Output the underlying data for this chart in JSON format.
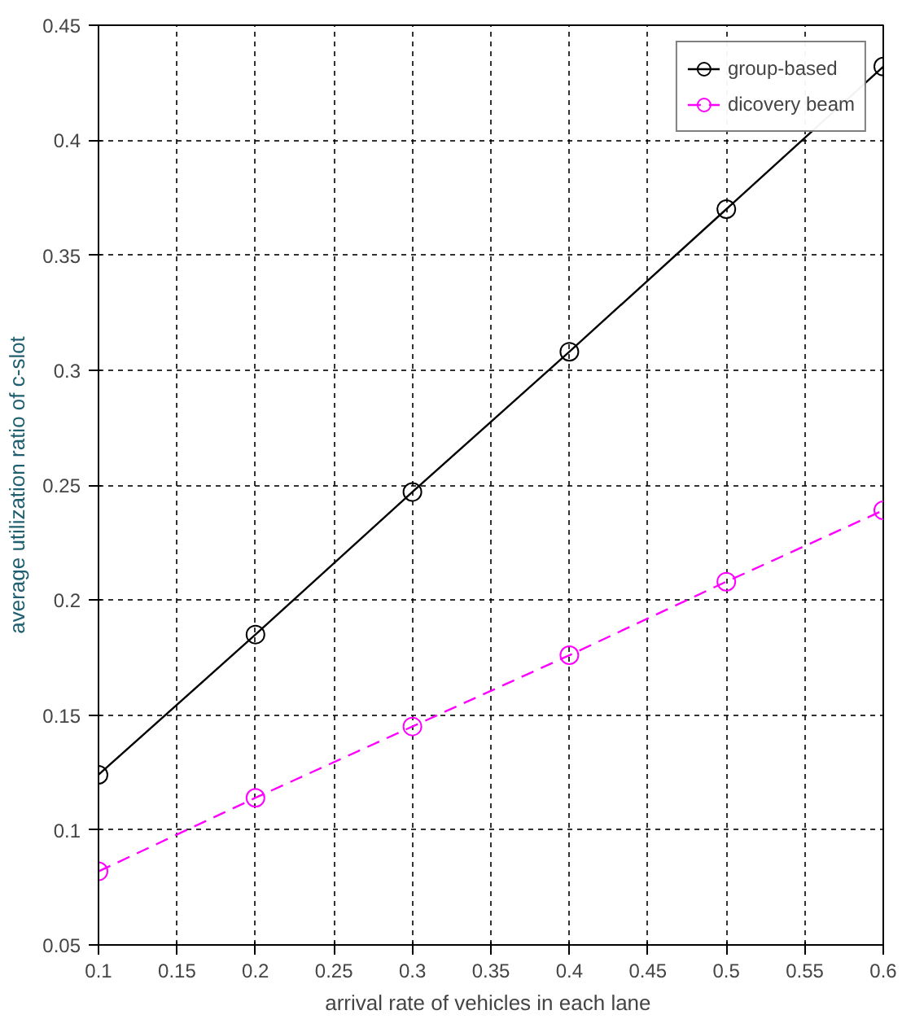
{
  "chart_data": {
    "type": "line",
    "xlabel": "arrival  rate of vehicles in each lane",
    "ylabel": "average utilization ratio of c-slot",
    "x": [
      0.1,
      0.2,
      0.3,
      0.4,
      0.5,
      0.6
    ],
    "series": [
      {
        "name": "group-based",
        "color": "#000000",
        "line_style": "solid",
        "values": [
          0.124,
          0.185,
          0.247,
          0.308,
          0.37,
          0.432
        ]
      },
      {
        "name": "dicovery beam",
        "color": "#ff00ff",
        "line_style": "dashed",
        "values": [
          0.082,
          0.114,
          0.145,
          0.176,
          0.208,
          0.239
        ]
      }
    ],
    "xlim": [
      0.1,
      0.6
    ],
    "ylim": [
      0.05,
      0.45
    ],
    "xticks": [
      0.1,
      0.15,
      0.2,
      0.25,
      0.3,
      0.35,
      0.4,
      0.45,
      0.5,
      0.55,
      0.6
    ],
    "yticks": [
      0.05,
      0.1,
      0.15,
      0.2,
      0.25,
      0.3,
      0.35,
      0.4,
      0.45
    ],
    "grid": true,
    "legend": "top right",
    "marker": "circle"
  }
}
